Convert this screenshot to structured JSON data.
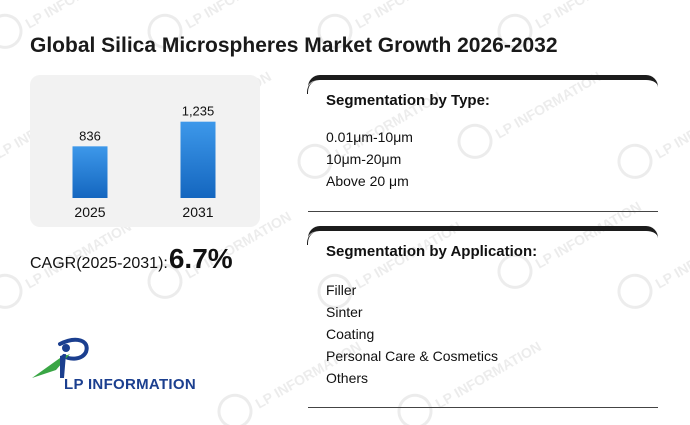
{
  "title": "Global Silica Microspheres Market Growth 2026-2032",
  "watermark_text": "LP INFORMATION",
  "chart_data": {
    "type": "bar",
    "categories": [
      "2025",
      "2031"
    ],
    "values": [
      836,
      1235
    ],
    "data_labels": [
      "836",
      "1,235"
    ],
    "title": "",
    "xlabel": "",
    "ylabel": "",
    "ylim": [
      0,
      1400
    ],
    "grid": false,
    "bar_color": "#1a7ad4"
  },
  "cagr": {
    "label": "CAGR(2025-2031):",
    "value": "6.7%"
  },
  "segmentation_type": {
    "title": "Segmentation by Type:",
    "items": [
      "0.01μm-10μm",
      "10μm-20μm",
      "Above 20 μm"
    ]
  },
  "segmentation_application": {
    "title": "Segmentation by Application:",
    "items": [
      "Filler",
      "Sinter",
      "Coating",
      "Personal Care & Cosmetics",
      "Others"
    ]
  },
  "logo": {
    "text": "LP INFORMATION",
    "colors": {
      "blue": "#1b3f8f",
      "green": "#3aa645"
    }
  }
}
